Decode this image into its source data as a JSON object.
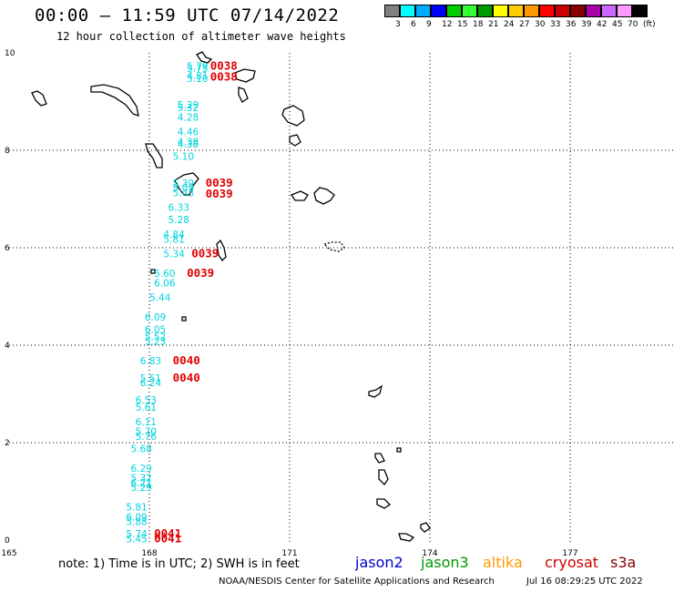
{
  "title": "00:00 – 11:59 UTC 07/14/2022",
  "subtitle": "12 hour collection of altimeter wave heights",
  "colorbar": {
    "colors": [
      "#808080",
      "#00ffff",
      "#00aaff",
      "#0000ff",
      "#00cc00",
      "#33ff33",
      "#009900",
      "#ffff00",
      "#ffcc00",
      "#ff9900",
      "#ff0000",
      "#cc0000",
      "#880000",
      "#aa00aa",
      "#cc66ff",
      "#ff99ff",
      "#000000"
    ],
    "labels": [
      "3",
      "6",
      "9",
      "12",
      "15",
      "18",
      "21",
      "24",
      "27",
      "30",
      "33",
      "36",
      "39",
      "42",
      "45",
      "70",
      "(ft)"
    ]
  },
  "axes": {
    "lon_labels": [
      "165",
      "168",
      "171",
      "174",
      "177"
    ],
    "lat_labels": [
      "10",
      "8",
      "6",
      "4",
      "2",
      "0"
    ]
  },
  "swh_readings": [
    {
      "lon": 168.8,
      "lat": 9.75,
      "label": "5.79"
    },
    {
      "lon": 168.8,
      "lat": 9.7,
      "label": "5.75"
    },
    {
      "lon": 168.8,
      "lat": 9.55,
      "label": "4.81"
    },
    {
      "lon": 168.8,
      "lat": 9.5,
      "label": "5.10"
    },
    {
      "lon": 168.6,
      "lat": 8.95,
      "label": "5.29"
    },
    {
      "lon": 168.6,
      "lat": 8.9,
      "label": "5.32"
    },
    {
      "lon": 168.6,
      "lat": 8.7,
      "label": "4.28"
    },
    {
      "lon": 168.6,
      "lat": 8.4,
      "label": "4.46"
    },
    {
      "lon": 168.6,
      "lat": 8.2,
      "label": "4.38"
    },
    {
      "lon": 168.6,
      "lat": 8.15,
      "label": "4.38"
    },
    {
      "lon": 168.5,
      "lat": 7.9,
      "label": "5.10"
    },
    {
      "lon": 168.5,
      "lat": 7.35,
      "label": "5.39"
    },
    {
      "lon": 168.5,
      "lat": 7.25,
      "label": "5.09"
    },
    {
      "lon": 168.5,
      "lat": 7.15,
      "label": "5.43"
    },
    {
      "lon": 168.4,
      "lat": 6.85,
      "label": "6.33"
    },
    {
      "lon": 168.4,
      "lat": 6.6,
      "label": "5.28"
    },
    {
      "lon": 168.3,
      "lat": 6.3,
      "label": "4.84"
    },
    {
      "lon": 168.3,
      "lat": 6.2,
      "label": "5.81"
    },
    {
      "lon": 168.3,
      "lat": 5.9,
      "label": "5.34"
    },
    {
      "lon": 168.1,
      "lat": 5.5,
      "label": "5.60"
    },
    {
      "lon": 168.1,
      "lat": 5.3,
      "label": "6.06"
    },
    {
      "lon": 168.0,
      "lat": 5.0,
      "label": "5.44"
    },
    {
      "lon": 167.9,
      "lat": 4.6,
      "label": "6.09"
    },
    {
      "lon": 167.9,
      "lat": 4.35,
      "label": "6.05"
    },
    {
      "lon": 167.9,
      "lat": 4.2,
      "label": "5.52"
    },
    {
      "lon": 167.9,
      "lat": 4.1,
      "label": "5.23"
    },
    {
      "lon": 167.8,
      "lat": 3.7,
      "label": "6.83"
    },
    {
      "lon": 167.8,
      "lat": 3.35,
      "label": "5.51"
    },
    {
      "lon": 167.8,
      "lat": 3.25,
      "label": "6.24"
    },
    {
      "lon": 167.7,
      "lat": 2.9,
      "label": "6.53"
    },
    {
      "lon": 167.7,
      "lat": 2.75,
      "label": "5.61"
    },
    {
      "lon": 167.7,
      "lat": 2.45,
      "label": "6.11"
    },
    {
      "lon": 167.7,
      "lat": 2.25,
      "label": "5.70"
    },
    {
      "lon": 167.7,
      "lat": 2.15,
      "label": "5.76"
    },
    {
      "lon": 167.6,
      "lat": 1.9,
      "label": "5.68"
    },
    {
      "lon": 167.6,
      "lat": 1.5,
      "label": "6.29"
    },
    {
      "lon": 167.6,
      "lat": 1.3,
      "label": "5.32"
    },
    {
      "lon": 167.6,
      "lat": 1.2,
      "label": "6.21"
    },
    {
      "lon": 167.6,
      "lat": 1.1,
      "label": "5.29"
    },
    {
      "lon": 167.5,
      "lat": 0.7,
      "label": "5.81"
    },
    {
      "lon": 167.5,
      "lat": 0.5,
      "label": "6.09"
    },
    {
      "lon": 167.5,
      "lat": 0.4,
      "label": "5.88"
    },
    {
      "lon": 167.5,
      "lat": 0.15,
      "label": "5.74"
    },
    {
      "lon": 167.5,
      "lat": 0.05,
      "label": "5.45"
    }
  ],
  "rev_labels": [
    {
      "lon": 169.3,
      "lat": 9.75,
      "label": "0038"
    },
    {
      "lon": 169.3,
      "lat": 9.52,
      "label": "0038"
    },
    {
      "lon": 169.2,
      "lat": 7.35,
      "label": "0039"
    },
    {
      "lon": 169.2,
      "lat": 7.12,
      "label": "0039"
    },
    {
      "lon": 168.9,
      "lat": 5.9,
      "label": "0039"
    },
    {
      "lon": 168.8,
      "lat": 5.5,
      "label": "0039"
    },
    {
      "lon": 168.5,
      "lat": 3.7,
      "label": "0040"
    },
    {
      "lon": 168.5,
      "lat": 3.35,
      "label": "0040"
    },
    {
      "lon": 168.1,
      "lat": 0.15,
      "label": "0041"
    },
    {
      "lon": 168.1,
      "lat": 0.05,
      "label": "0041"
    }
  ],
  "note": "note: 1) Time is in UTC; 2) SWH is in feet",
  "satellites": [
    {
      "name": "jason2",
      "color": "#0000cc"
    },
    {
      "name": "jason3",
      "color": "#009900"
    },
    {
      "name": "altika",
      "color": "#ff9900"
    },
    {
      "name": "cryosat",
      "color": "#cc0000"
    },
    {
      "name": "s3a",
      "color": "#880000"
    }
  ],
  "credit": "NOAA/NESDIS Center for Satellite Applications and Research",
  "timestamp": "Jul 16 08:29:25 UTC 2022"
}
